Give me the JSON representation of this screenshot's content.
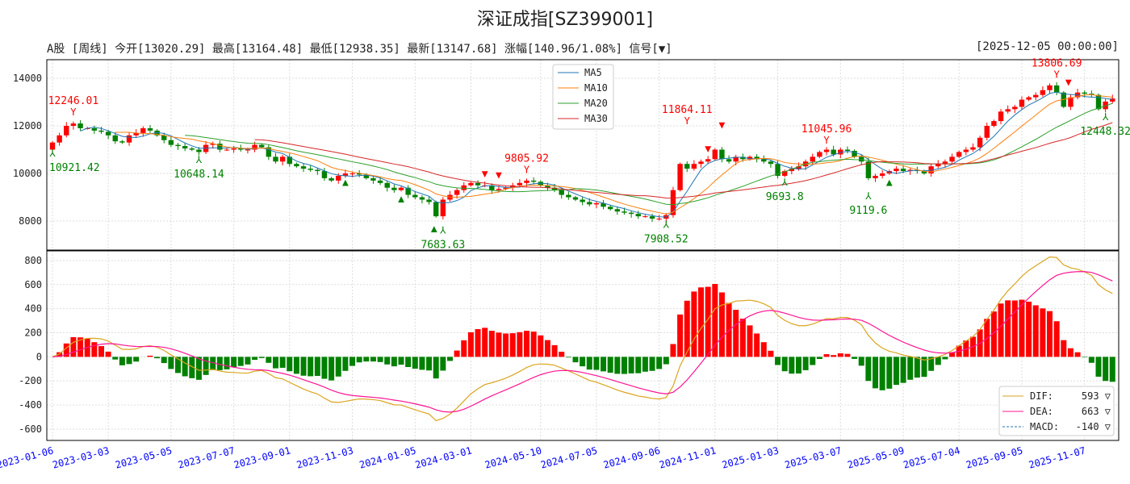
{
  "title": "深证成指[SZ399001]",
  "info": "A股 [周线] 今开[13020.29] 最高[13164.48] 最低[12938.35] 最新[13147.68] 涨幅[140.96/1.08%] 信号[▼]",
  "datetime": "[2025-12-05 00:00:00]",
  "colors": {
    "up": "#ff0000",
    "down": "#008000",
    "ma5": "#1f77b4",
    "ma10": "#ff7f0e",
    "ma20": "#2ca02c",
    "ma30": "#d62728",
    "dif": "#daa520",
    "dea": "#ff1493",
    "macd": "#1f77b4",
    "date_label": "#0000ff"
  },
  "chart_data": {
    "type": "candlestick",
    "title": "深证成指[SZ399001]",
    "start_date": "2023-01-06",
    "interval": "weekly",
    "price_ylim": [
      6780,
      14780
    ],
    "price_ticks": [
      8000,
      10000,
      12000,
      14000
    ],
    "macd_ylim": [
      -694,
      880
    ],
    "macd_ticks": [
      -600,
      -400,
      -200,
      0,
      200,
      400,
      600,
      800
    ],
    "closes": [
      11300,
      11600,
      12000,
      12100,
      11900,
      11900,
      11800,
      11750,
      11600,
      11350,
      11300,
      11600,
      11700,
      11900,
      11800,
      11600,
      11400,
      11200,
      11150,
      11050,
      11000,
      10900,
      11200,
      11250,
      11000,
      11000,
      11050,
      11000,
      11000,
      11200,
      11100,
      10700,
      10500,
      10700,
      10400,
      10300,
      10200,
      10150,
      10100,
      9800,
      9700,
      9900,
      10000,
      10000,
      9950,
      9800,
      9700,
      9600,
      9400,
      9300,
      9400,
      9100,
      9000,
      8900,
      8800,
      8200,
      8900,
      9100,
      9300,
      9500,
      9600,
      9500,
      9500,
      9300,
      9350,
      9400,
      9500,
      9600,
      9700,
      9650,
      9500,
      9400,
      9300,
      9100,
      9000,
      8900,
      8800,
      8700,
      8750,
      8600,
      8500,
      8400,
      8350,
      8300,
      8200,
      8200,
      8100,
      8100,
      8250,
      9300,
      10400,
      10200,
      10400,
      10500,
      10600,
      11000,
      10600,
      10500,
      10700,
      10600,
      10700,
      10600,
      10500,
      10400,
      9900,
      10100,
      10200,
      10300,
      10500,
      10700,
      10900,
      11000,
      10800,
      11000,
      10950,
      10700,
      10500,
      9800,
      9900,
      10000,
      10100,
      10200,
      10100,
      10150,
      10100,
      10000,
      10300,
      10400,
      10500,
      10700,
      10900,
      11000,
      11100,
      11500,
      12000,
      12200,
      12600,
      12700,
      12800,
      13100,
      13200,
      13300,
      13500,
      13700,
      13400,
      12800,
      13200,
      13400,
      13350,
      13300,
      12700,
      13020,
      13148
    ],
    "first_open": 11000,
    "annotations": [
      {
        "week": 3,
        "value": 12246.01,
        "label": "12246.01",
        "type": "high"
      },
      {
        "week": 0,
        "value": 10921.42,
        "label": "10921.42",
        "type": "low"
      },
      {
        "week": 21,
        "value": 10648.14,
        "label": "10648.14",
        "type": "low"
      },
      {
        "week": 56,
        "value": 7683.63,
        "label": "7683.63",
        "type": "low"
      },
      {
        "week": 68,
        "value": 9805.92,
        "label": "9805.92",
        "type": "high"
      },
      {
        "week": 88,
        "value": 7908.52,
        "label": "7908.52",
        "type": "low"
      },
      {
        "week": 91,
        "value": 11864.11,
        "label": "11864.11",
        "type": "high"
      },
      {
        "week": 105,
        "value": 9693.8,
        "label": "9693.8",
        "type": "low"
      },
      {
        "week": 111,
        "value": 11045.96,
        "label": "11045.96",
        "type": "high"
      },
      {
        "week": 117,
        "value": 9119.6,
        "label": "9119.6",
        "type": "low"
      },
      {
        "week": 144,
        "value": 13806.69,
        "label": "13806.69",
        "type": "high"
      },
      {
        "week": 151,
        "value": 12448.32,
        "label": "12448.32",
        "type": "low"
      }
    ],
    "sell_signals": [
      {
        "week": 62,
        "value": 9850
      },
      {
        "week": 64,
        "value": 9800
      },
      {
        "week": 94,
        "value": 10900
      },
      {
        "week": 96,
        "value": 11900
      },
      {
        "week": 145,
        "value": 13700
      }
    ],
    "buy_signals": [
      {
        "week": 42,
        "value": 9500
      },
      {
        "week": 50,
        "value": 8800
      },
      {
        "week": 56,
        "value": 7550
      },
      {
        "week": 120,
        "value": 9500
      }
    ],
    "ma_legend": [
      "MA5",
      "MA10",
      "MA20",
      "MA30"
    ],
    "macd_legend": [
      {
        "name": "DIF:",
        "value": "593 ▽"
      },
      {
        "name": "DEA:",
        "value": "663 ▽"
      },
      {
        "name": "MACD:",
        "value": "-140 ▽"
      }
    ],
    "x_tick_labels": [
      "2023-01-06",
      "2023-03-03",
      "2023-05-05",
      "2023-07-07",
      "2023-09-01",
      "2023-11-03",
      "2024-01-05",
      "2024-03-01",
      "2024-05-10",
      "2024-07-05",
      "2024-09-06",
      "2024-11-01",
      "2025-01-03",
      "2025-03-07",
      "2025-05-09",
      "2025-07-04",
      "2025-09-05",
      "2025-11-07"
    ]
  }
}
